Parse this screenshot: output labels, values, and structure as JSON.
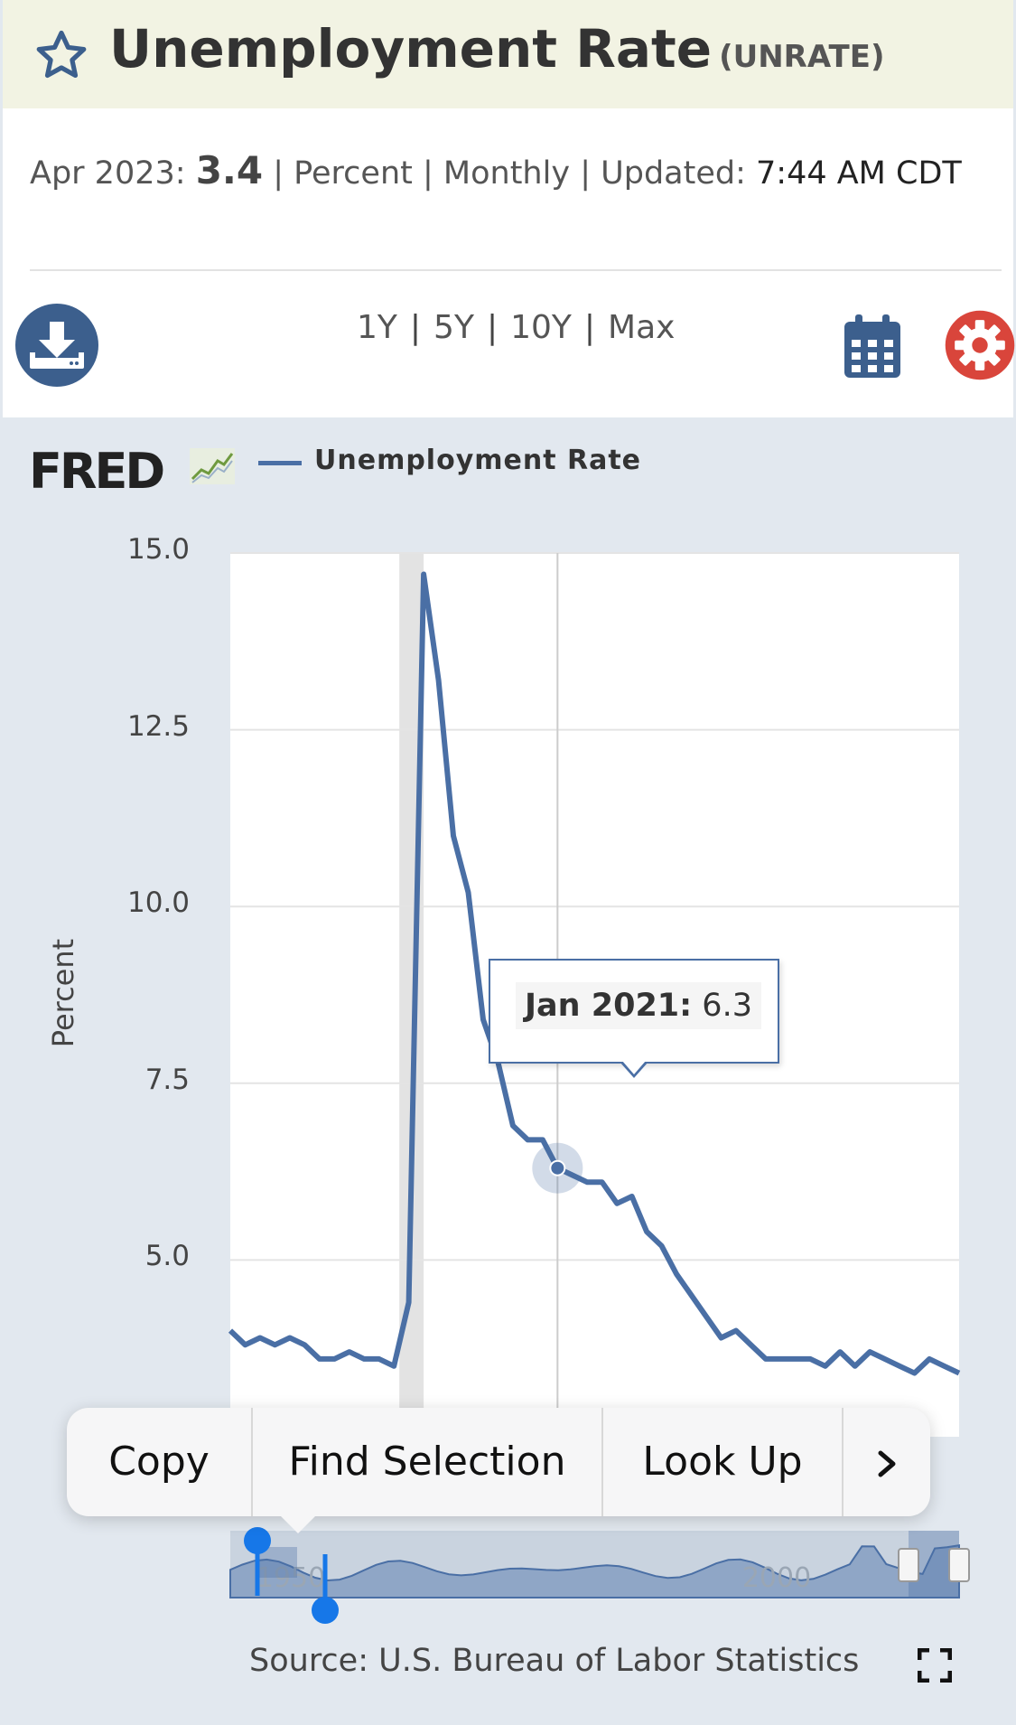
{
  "header": {
    "title": "Unemployment Rate",
    "series_id": "(UNRATE)",
    "star_icon": "star-icon"
  },
  "info": {
    "date_label": "Apr 2023:",
    "value": "3.4",
    "units": "| Percent |",
    "frequency": "Monthly",
    "updated_label": "| Updated:",
    "updated_time": "7:44 AM",
    "timezone": "CDT"
  },
  "toolbar": {
    "download_icon": "download-icon",
    "ranges": [
      "1Y",
      "5Y",
      "10Y",
      "Max"
    ],
    "calendar_icon": "calendar-icon",
    "settings_icon": "gear-icon"
  },
  "brand": {
    "logo": "FRED"
  },
  "legend": {
    "label": "Unemployment Rate",
    "color": "#4a6fa5"
  },
  "tooltip": {
    "date": "Jan 2021:",
    "value": "6.3"
  },
  "context_menu": {
    "items": [
      "Copy",
      "Find Selection",
      "Look Up"
    ],
    "more_icon": "chevron-right-icon"
  },
  "navigator": {
    "labels": [
      "1950",
      "2000"
    ]
  },
  "source": "Source: U.S. Bureau of Labor Statistics",
  "colors": {
    "line": "#4a6fa5",
    "recession_shading": "#e3e3e3",
    "header_bg": "#f2f3e3",
    "chart_bg": "#e2e8ef",
    "settings": "#d9453b",
    "accent": "#3c5f8d"
  },
  "chart_data": {
    "type": "line",
    "ylabel": "Percent",
    "ylim": [
      2.5,
      15.0
    ],
    "yticks": [
      "15.0",
      "12.5",
      "10.0",
      "7.5",
      "5.0"
    ],
    "series": [
      {
        "name": "Unemployment Rate",
        "x": [
          "2018-04",
          "2018-06",
          "2018-08",
          "2018-10",
          "2018-12",
          "2019-02",
          "2019-04",
          "2019-06",
          "2019-08",
          "2019-10",
          "2019-12",
          "2020-02",
          "2020-03",
          "2020-04",
          "2020-05",
          "2020-06",
          "2020-07",
          "2020-08",
          "2020-09",
          "2020-10",
          "2020-11",
          "2020-12",
          "2021-01",
          "2021-02",
          "2021-03",
          "2021-04",
          "2021-05",
          "2021-06",
          "2021-07",
          "2021-08",
          "2021-09",
          "2021-10",
          "2021-11",
          "2021-12",
          "2022-01",
          "2022-02",
          "2022-03",
          "2022-04",
          "2022-05",
          "2022-06",
          "2022-07",
          "2022-08",
          "2022-09",
          "2022-10",
          "2022-11",
          "2022-12",
          "2023-01",
          "2023-02",
          "2023-03",
          "2023-04"
        ],
        "y": [
          4.0,
          3.8,
          3.9,
          3.8,
          3.9,
          3.8,
          3.6,
          3.6,
          3.7,
          3.6,
          3.6,
          3.5,
          4.4,
          14.7,
          13.2,
          11.0,
          10.2,
          8.4,
          7.8,
          6.9,
          6.7,
          6.7,
          6.3,
          6.2,
          6.1,
          6.1,
          5.8,
          5.9,
          5.4,
          5.2,
          4.8,
          4.5,
          4.2,
          3.9,
          4.0,
          3.8,
          3.6,
          3.6,
          3.6,
          3.6,
          3.5,
          3.7,
          3.5,
          3.7,
          3.6,
          3.5,
          3.4,
          3.6,
          3.5,
          3.4
        ]
      }
    ],
    "highlight": {
      "x": "2021-01",
      "y": 6.3
    },
    "grid": true,
    "legend_position": "top-left"
  }
}
